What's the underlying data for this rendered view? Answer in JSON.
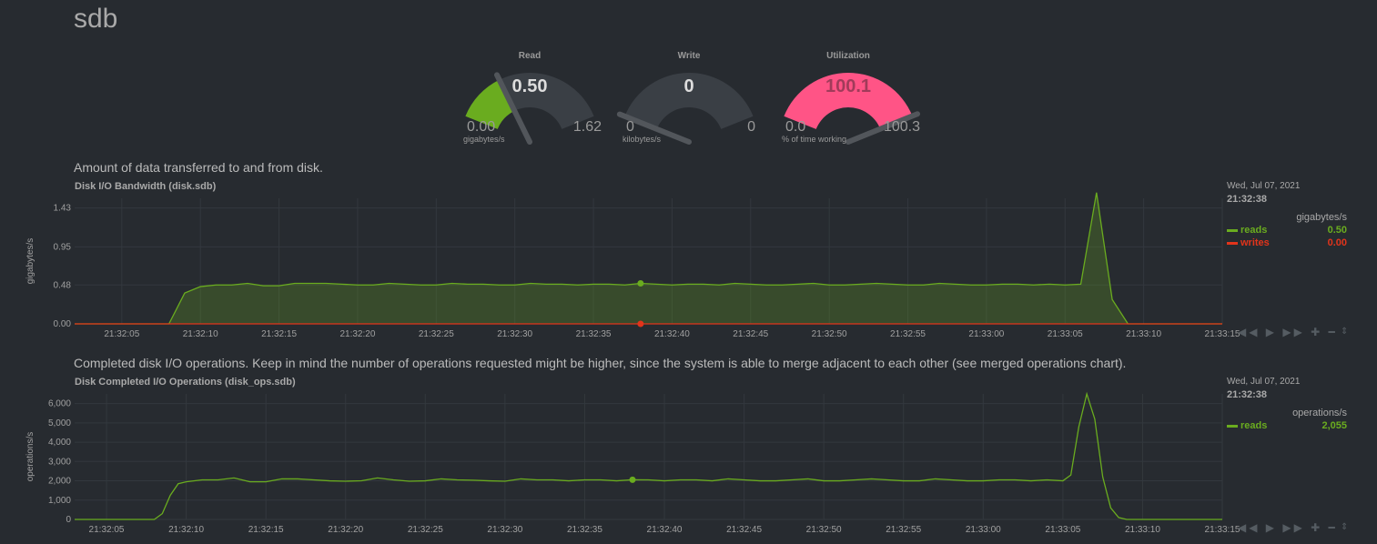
{
  "section": {
    "title": "sdb"
  },
  "gauges": [
    {
      "title": "Read",
      "value": "0.50",
      "min": "0.00",
      "max": "1.62",
      "unit": "gigabytes/s",
      "fraction": 0.309,
      "color": "#6aac1f"
    },
    {
      "title": "Write",
      "value": "0",
      "min": "0",
      "max": "0",
      "unit": "kilobytes/s",
      "fraction": 0.0,
      "color": "#6aac1f"
    },
    {
      "title": "Utilization",
      "value": "100.1",
      "min": "0.0",
      "max": "100.3",
      "unit": "% of time working",
      "fraction": 0.998,
      "color": "#ff5486"
    }
  ],
  "charts": {
    "bandwidth": {
      "description": "Amount of data transferred to and from disk.",
      "title": "Disk I/O Bandwidth (disk.sdb)",
      "ylabel": "gigabytes/s",
      "legend": {
        "date": "Wed, Jul 07, 2021",
        "time": "21:32:38",
        "units": "gigabytes/s",
        "series": [
          {
            "name": "reads",
            "value": "0.50",
            "color": "#6aac1f"
          },
          {
            "name": "writes",
            "value": "0.00",
            "color": "#e2341b"
          }
        ]
      }
    },
    "ops": {
      "description": "Completed disk I/O operations. Keep in mind the number of operations requested might be higher, since the system is able to merge adjacent to each other (see merged operations chart).",
      "title": "Disk Completed I/O Operations (disk_ops.sdb)",
      "ylabel": "operations/s",
      "legend": {
        "date": "Wed, Jul 07, 2021",
        "time": "21:32:38",
        "units": "operations/s",
        "series": [
          {
            "name": "reads",
            "value": "2,055",
            "color": "#6aac1f"
          }
        ]
      }
    }
  },
  "toolbar": {
    "icons": [
      "rewind-icon",
      "play-icon",
      "fast-forward-icon",
      "zoom-in-icon",
      "zoom-out-icon"
    ],
    "glyphs": "◀◀ ▶ ▶▶ ✚ ━",
    "resize_glyph": "⇕"
  },
  "chart_data": [
    {
      "type": "area",
      "title": "Disk I/O Bandwidth (disk.sdb)",
      "ylabel": "gigabytes/s",
      "ylim": [
        0,
        1.55
      ],
      "yticks": [
        "0.00",
        "0.48",
        "0.95",
        "1.43"
      ],
      "ytick_values": [
        0,
        0.48,
        0.95,
        1.43
      ],
      "xlim": [
        "21:32:02",
        "21:33:15"
      ],
      "xticks": [
        "21:32:05",
        "21:32:10",
        "21:32:15",
        "21:32:20",
        "21:32:25",
        "21:32:30",
        "21:32:35",
        "21:32:40",
        "21:32:45",
        "21:32:50",
        "21:32:55",
        "21:33:00",
        "21:33:05",
        "21:33:10",
        "21:33:15"
      ],
      "grid": true,
      "highlight_time": "21:32:38",
      "series": [
        {
          "name": "reads",
          "color": "#6aac1f",
          "points": [
            [
              "21:32:02",
              0
            ],
            [
              "21:32:08",
              0
            ],
            [
              "21:32:09",
              0.38
            ],
            [
              "21:32:10",
              0.46
            ],
            [
              "21:32:11",
              0.48
            ],
            [
              "21:32:12",
              0.48
            ],
            [
              "21:32:13",
              0.5
            ],
            [
              "21:32:14",
              0.47
            ],
            [
              "21:32:15",
              0.47
            ],
            [
              "21:32:16",
              0.5
            ],
            [
              "21:32:17",
              0.5
            ],
            [
              "21:32:18",
              0.5
            ],
            [
              "21:32:19",
              0.49
            ],
            [
              "21:32:20",
              0.48
            ],
            [
              "21:32:21",
              0.48
            ],
            [
              "21:32:22",
              0.5
            ],
            [
              "21:32:23",
              0.49
            ],
            [
              "21:32:24",
              0.48
            ],
            [
              "21:32:25",
              0.48
            ],
            [
              "21:32:26",
              0.5
            ],
            [
              "21:32:27",
              0.49
            ],
            [
              "21:32:28",
              0.49
            ],
            [
              "21:32:29",
              0.48
            ],
            [
              "21:32:30",
              0.48
            ],
            [
              "21:32:31",
              0.5
            ],
            [
              "21:32:32",
              0.49
            ],
            [
              "21:32:33",
              0.49
            ],
            [
              "21:32:34",
              0.48
            ],
            [
              "21:32:35",
              0.49
            ],
            [
              "21:32:36",
              0.49
            ],
            [
              "21:32:37",
              0.48
            ],
            [
              "21:32:38",
              0.5
            ],
            [
              "21:32:39",
              0.49
            ],
            [
              "21:32:40",
              0.48
            ],
            [
              "21:32:41",
              0.49
            ],
            [
              "21:32:42",
              0.49
            ],
            [
              "21:32:43",
              0.48
            ],
            [
              "21:32:44",
              0.5
            ],
            [
              "21:32:45",
              0.49
            ],
            [
              "21:32:46",
              0.48
            ],
            [
              "21:32:47",
              0.48
            ],
            [
              "21:32:48",
              0.49
            ],
            [
              "21:32:49",
              0.5
            ],
            [
              "21:32:50",
              0.48
            ],
            [
              "21:32:51",
              0.48
            ],
            [
              "21:32:52",
              0.49
            ],
            [
              "21:32:53",
              0.5
            ],
            [
              "21:32:54",
              0.49
            ],
            [
              "21:32:55",
              0.48
            ],
            [
              "21:32:56",
              0.48
            ],
            [
              "21:32:57",
              0.5
            ],
            [
              "21:32:58",
              0.49
            ],
            [
              "21:32:59",
              0.48
            ],
            [
              "21:33:00",
              0.48
            ],
            [
              "21:33:01",
              0.49
            ],
            [
              "21:33:02",
              0.49
            ],
            [
              "21:33:03",
              0.48
            ],
            [
              "21:33:04",
              0.49
            ],
            [
              "21:33:05",
              0.48
            ],
            [
              "21:33:06",
              0.49
            ],
            [
              "21:33:07",
              1.62
            ],
            [
              "21:33:08",
              0.3
            ],
            [
              "21:33:09",
              0
            ],
            [
              "21:33:10",
              0
            ],
            [
              "21:33:15",
              0
            ]
          ]
        },
        {
          "name": "writes",
          "color": "#e2341b",
          "points": [
            [
              "21:32:02",
              0
            ],
            [
              "21:33:15",
              0
            ]
          ]
        }
      ]
    },
    {
      "type": "line",
      "title": "Disk Completed I/O Operations (disk_ops.sdb)",
      "ylabel": "operations/s",
      "ylim": [
        0,
        6500
      ],
      "yticks": [
        "0",
        "1,000",
        "2,000",
        "3,000",
        "4,000",
        "5,000",
        "6,000"
      ],
      "ytick_values": [
        0,
        1000,
        2000,
        3000,
        4000,
        5000,
        6000
      ],
      "xlim": [
        "21:32:03",
        "21:33:15"
      ],
      "xticks": [
        "21:32:05",
        "21:32:10",
        "21:32:15",
        "21:32:20",
        "21:32:25",
        "21:32:30",
        "21:32:35",
        "21:32:40",
        "21:32:45",
        "21:32:50",
        "21:32:55",
        "21:33:00",
        "21:33:05",
        "21:33:10",
        "21:33:15"
      ],
      "grid": true,
      "highlight_time": "21:32:38",
      "series": [
        {
          "name": "reads",
          "color": "#6aac1f",
          "points": [
            [
              "21:32:03",
              0
            ],
            [
              "21:32:08",
              0
            ],
            [
              "21:32:08.5",
              300
            ],
            [
              "21:32:09",
              1250
            ],
            [
              "21:32:09.5",
              1850
            ],
            [
              "21:32:10",
              1950
            ],
            [
              "21:32:11",
              2050
            ],
            [
              "21:32:12",
              2050
            ],
            [
              "21:32:13",
              2150
            ],
            [
              "21:32:14",
              1950
            ],
            [
              "21:32:15",
              1950
            ],
            [
              "21:32:16",
              2100
            ],
            [
              "21:32:17",
              2100
            ],
            [
              "21:32:18",
              2050
            ],
            [
              "21:32:19",
              2000
            ],
            [
              "21:32:20",
              1980
            ],
            [
              "21:32:21",
              2000
            ],
            [
              "21:32:22",
              2150
            ],
            [
              "21:32:23",
              2050
            ],
            [
              "21:32:24",
              1980
            ],
            [
              "21:32:25",
              2000
            ],
            [
              "21:32:26",
              2100
            ],
            [
              "21:32:27",
              2050
            ],
            [
              "21:32:28",
              2030
            ],
            [
              "21:32:29",
              2000
            ],
            [
              "21:32:30",
              1980
            ],
            [
              "21:32:31",
              2100
            ],
            [
              "21:32:32",
              2050
            ],
            [
              "21:32:33",
              2050
            ],
            [
              "21:32:34",
              2000
            ],
            [
              "21:32:35",
              2050
            ],
            [
              "21:32:36",
              2050
            ],
            [
              "21:32:37",
              2000
            ],
            [
              "21:32:38",
              2055
            ],
            [
              "21:32:39",
              2050
            ],
            [
              "21:32:40",
              2000
            ],
            [
              "21:32:41",
              2050
            ],
            [
              "21:32:42",
              2050
            ],
            [
              "21:32:43",
              2000
            ],
            [
              "21:32:44",
              2100
            ],
            [
              "21:32:45",
              2050
            ],
            [
              "21:32:46",
              2000
            ],
            [
              "21:32:47",
              2000
            ],
            [
              "21:32:48",
              2050
            ],
            [
              "21:32:49",
              2100
            ],
            [
              "21:32:50",
              2000
            ],
            [
              "21:32:51",
              2000
            ],
            [
              "21:32:52",
              2050
            ],
            [
              "21:32:53",
              2100
            ],
            [
              "21:32:54",
              2050
            ],
            [
              "21:32:55",
              2000
            ],
            [
              "21:32:56",
              2000
            ],
            [
              "21:32:57",
              2100
            ],
            [
              "21:32:58",
              2050
            ],
            [
              "21:32:59",
              2000
            ],
            [
              "21:33:00",
              2000
            ],
            [
              "21:33:01",
              2050
            ],
            [
              "21:33:02",
              2050
            ],
            [
              "21:33:03",
              2000
            ],
            [
              "21:33:04",
              2050
            ],
            [
              "21:33:05",
              2000
            ],
            [
              "21:33:05.5",
              2300
            ],
            [
              "21:33:06",
              4800
            ],
            [
              "21:33:06.5",
              6500
            ],
            [
              "21:33:07",
              5200
            ],
            [
              "21:33:07.5",
              2200
            ],
            [
              "21:33:08",
              600
            ],
            [
              "21:33:08.5",
              100
            ],
            [
              "21:33:09",
              0
            ],
            [
              "21:33:15",
              0
            ]
          ]
        }
      ]
    }
  ]
}
